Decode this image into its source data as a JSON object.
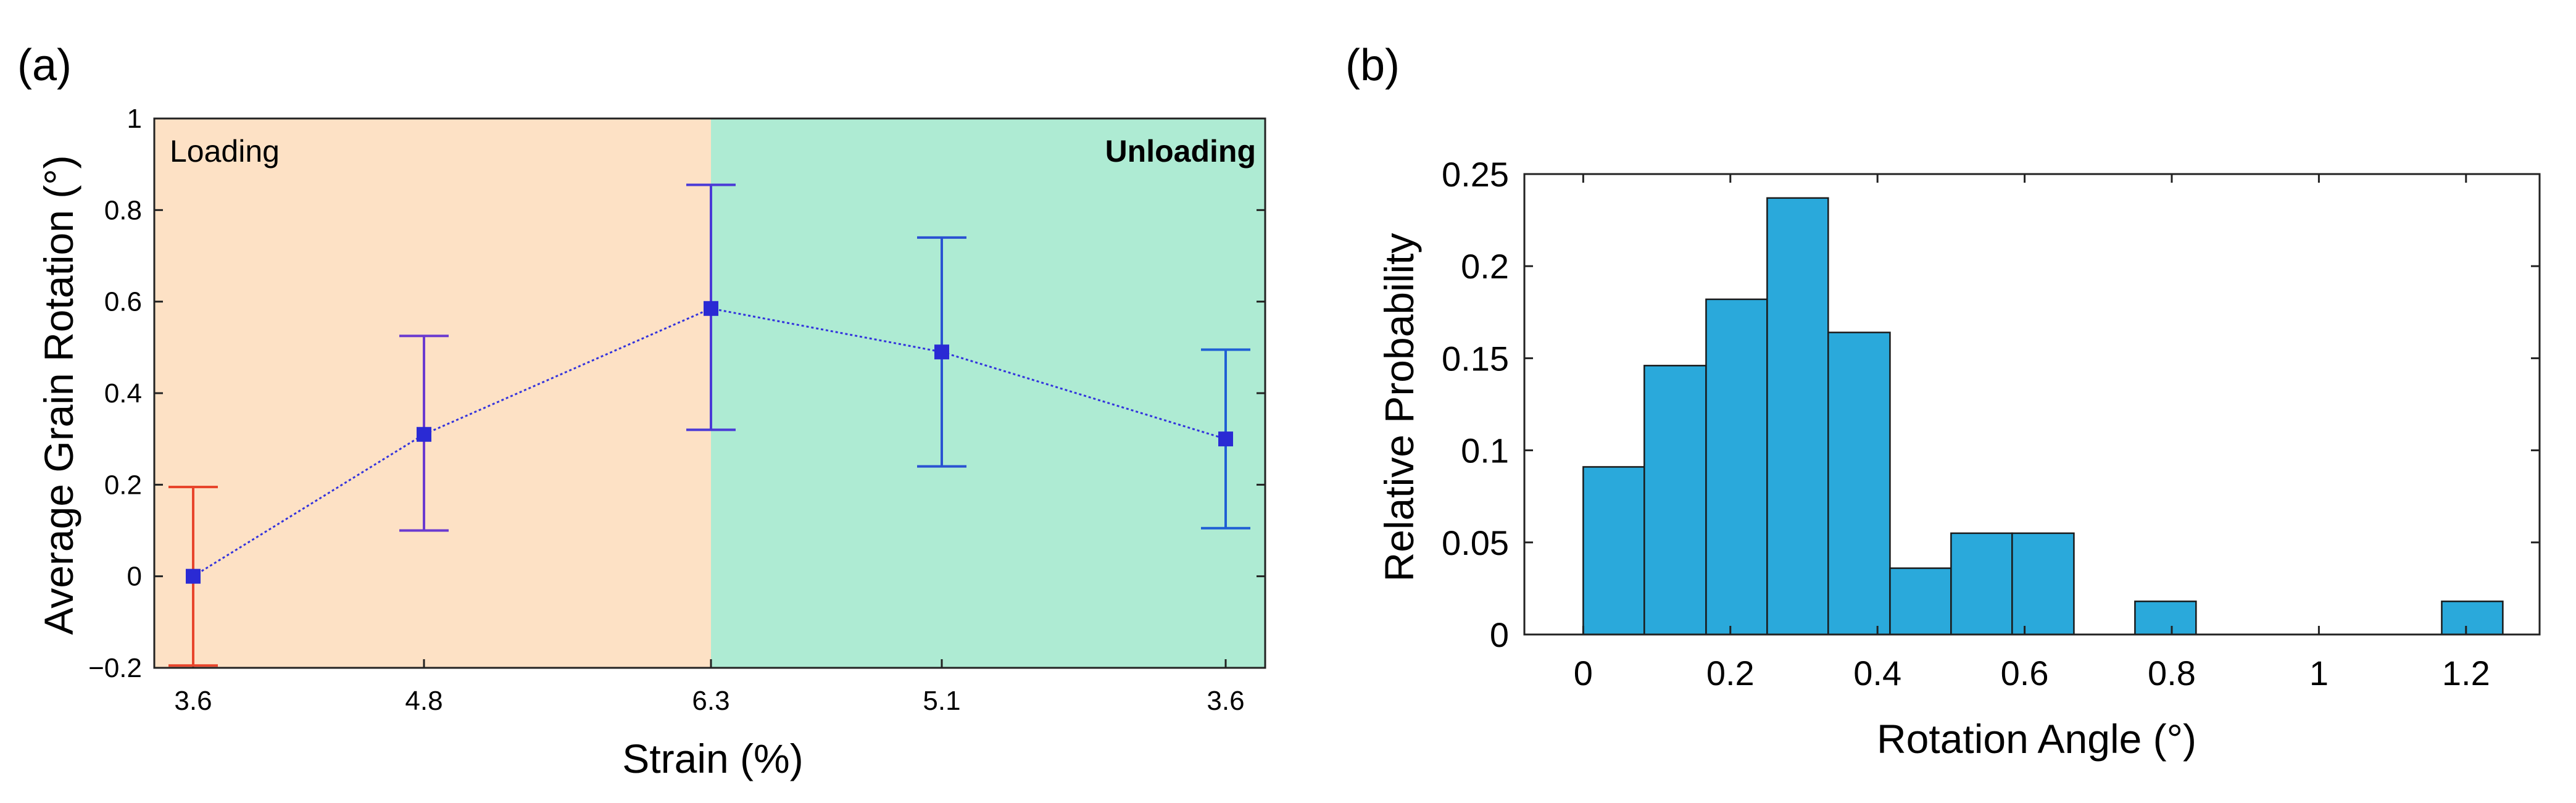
{
  "chart_data": [
    {
      "panel": "(a)",
      "type": "line",
      "xlabel": "Strain (%)",
      "ylabel": "Average Grain Rotation (°)",
      "ylim": [
        -0.2,
        1
      ],
      "yticks": [
        "1",
        "0.8",
        "0.6",
        "0.4",
        "0.2",
        "0",
        "−0.2"
      ],
      "categories": [
        "3.6",
        "4.8",
        "6.3",
        "5.1",
        "3.6"
      ],
      "values": [
        0.0,
        0.31,
        0.585,
        0.49,
        0.3
      ],
      "error_low": [
        -0.195,
        0.1,
        0.32,
        0.24,
        0.105
      ],
      "error_high": [
        0.195,
        0.525,
        0.855,
        0.74,
        0.495
      ],
      "regions": [
        {
          "label": "Loading",
          "from_index": 0,
          "to_index": 2,
          "color": "#fde1c5",
          "label_color": "#f59b3a"
        },
        {
          "label": "Unloading",
          "from_index": 2,
          "to_index": 4,
          "color": "#aeebd3",
          "label_color": "#1ab05b"
        }
      ],
      "error_colors": [
        "#e8452c",
        "#6a3ad0",
        "#4a3ad6",
        "#2a52d2",
        "#1f5fd4"
      ],
      "line_color": "#3333dd"
    },
    {
      "panel": "(b)",
      "type": "bar",
      "subtype": "histogram",
      "xlabel": "Rotation Angle (°)",
      "ylabel": "Relative Probability",
      "xlim": [
        -0.08,
        1.3
      ],
      "ylim": [
        0,
        0.25
      ],
      "xticks": [
        "0",
        "0.2",
        "0.4",
        "0.6",
        "0.8",
        "1",
        "1.2"
      ],
      "yticks": [
        "0",
        "0.05",
        "0.1",
        "0.15",
        "0.2",
        "0.25"
      ],
      "bin_edges": [
        0,
        0.083,
        0.167,
        0.25,
        0.333,
        0.417,
        0.5,
        0.583,
        0.667,
        0.75,
        0.833,
        0.917,
        1.0,
        1.083,
        1.167,
        1.25
      ],
      "values": [
        0.091,
        0.146,
        0.182,
        0.237,
        0.164,
        0.036,
        0.055,
        0.055,
        0,
        0.018,
        0,
        0,
        0,
        0,
        0.018
      ],
      "bar_color": "#2aa9db"
    }
  ]
}
